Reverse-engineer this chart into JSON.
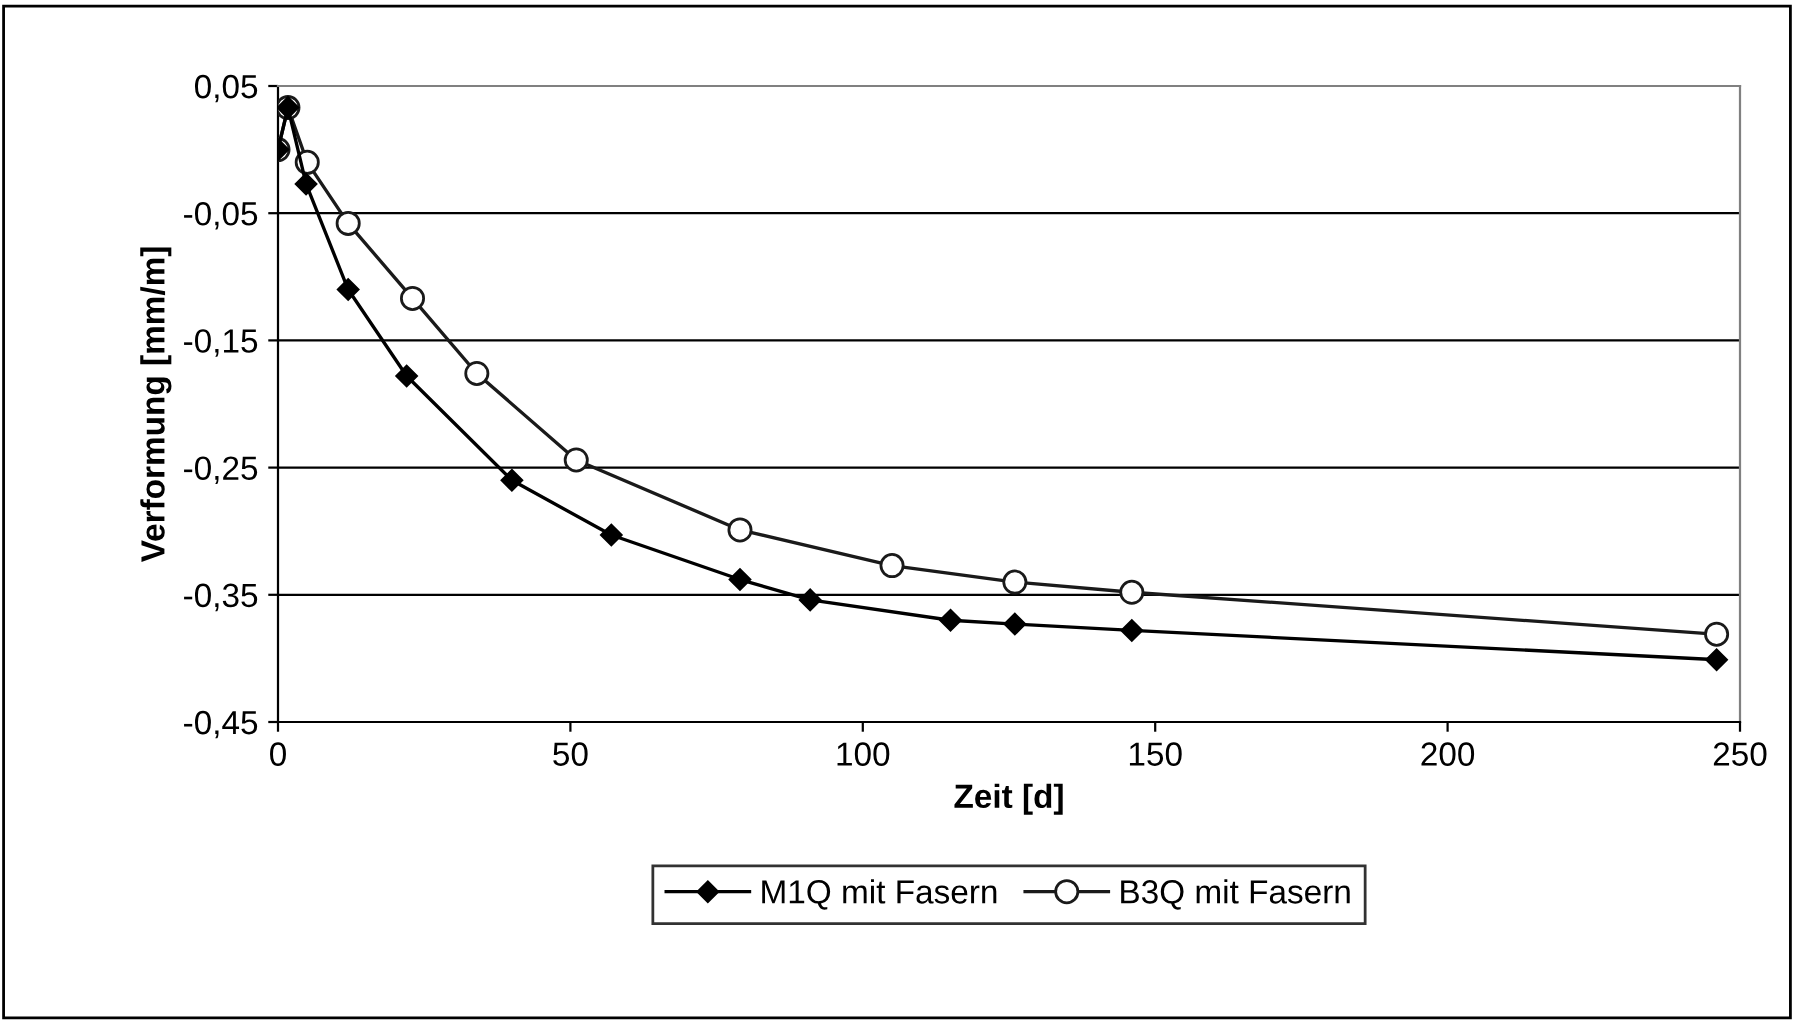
{
  "chart_data": {
    "type": "line",
    "xlabel": "Zeit [d]",
    "ylabel": "Verformung [mm/m]",
    "xlim": [
      0,
      250
    ],
    "xticks": [
      0,
      50,
      100,
      150,
      200,
      250
    ],
    "ylim": [
      -0.45,
      0.05
    ],
    "yticks": [
      {
        "value": -0.45,
        "label": "-0,45"
      },
      {
        "value": -0.35,
        "label": "-0,35"
      },
      {
        "value": -0.25,
        "label": "-0,25"
      },
      {
        "value": -0.15,
        "label": "-0,15"
      },
      {
        "value": -0.05,
        "label": "-0,05"
      },
      {
        "value": 0.05,
        "label": "0,05"
      }
    ],
    "grid": "y",
    "legend": "bottom",
    "line_style": "solid",
    "series": [
      {
        "name": "M1Q mit Fasern",
        "color": "#000000",
        "marker": "diamond",
        "x": [
          0,
          1.7,
          4.8,
          12,
          22,
          40,
          57,
          79,
          91,
          115,
          126,
          146,
          246
        ],
        "values": [
          0,
          0.033,
          -0.027,
          -0.11,
          -0.178,
          -0.26,
          -0.303,
          -0.338,
          -0.354,
          -0.37,
          -0.373,
          -0.378,
          -0.401
        ]
      },
      {
        "name": "B3Q mit Fasern",
        "color": "#1a1a1a",
        "marker": "circle",
        "x": [
          0,
          1.7,
          5,
          12,
          23,
          34,
          51,
          79,
          105,
          126,
          146,
          246
        ],
        "values": [
          0,
          0.033,
          -0.01,
          -0.058,
          -0.117,
          -0.176,
          -0.244,
          -0.299,
          -0.327,
          -0.34,
          -0.348,
          -0.381
        ]
      }
    ]
  }
}
